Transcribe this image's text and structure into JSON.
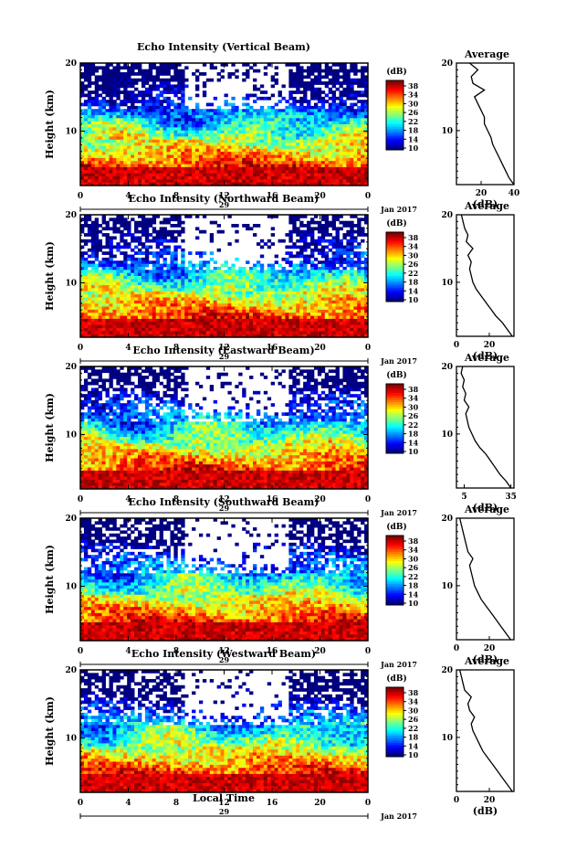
{
  "figure": {
    "date_label": "Jan 2017",
    "x_axis_label": "Local Time"
  },
  "chart_data": [
    {
      "type": "heatmap",
      "title": "Echo Intensity (Vertical Beam)",
      "ylabel": "Height (km)",
      "ylim": [
        2,
        20
      ],
      "yticks": [
        10,
        20
      ],
      "xlim": [
        0,
        24
      ],
      "xticks": [
        "0",
        "4",
        "8",
        "12",
        "16",
        "20",
        "0"
      ],
      "day_label": "29",
      "colorbar": {
        "unit": "(dB)",
        "min": 10,
        "max": 38,
        "ticks": [
          "38",
          "34",
          "30",
          "26",
          "22",
          "18",
          "14",
          "10"
        ]
      },
      "average_profile": {
        "title": "Average",
        "xlabel": "(dB)",
        "xticks": [
          "20",
          "40"
        ],
        "xlim": [
          5,
          40
        ],
        "yticks": [
          10,
          20
        ],
        "height_km": [
          2,
          3,
          4,
          5,
          6,
          7,
          8,
          9,
          10,
          11,
          12,
          13,
          14,
          15,
          16,
          17,
          18,
          19,
          20
        ],
        "db": [
          40,
          37,
          35,
          33,
          31,
          29,
          27,
          26,
          24,
          22,
          22,
          20,
          18,
          16,
          22,
          15,
          14,
          18,
          13
        ]
      }
    },
    {
      "type": "heatmap",
      "title": "Echo Intensity (Northward Beam)",
      "ylabel": "Height (km)",
      "ylim": [
        2,
        20
      ],
      "yticks": [
        10,
        20
      ],
      "xlim": [
        0,
        24
      ],
      "xticks": [
        "0",
        "4",
        "8",
        "12",
        "16",
        "20",
        "0"
      ],
      "day_label": "29",
      "colorbar": {
        "unit": "(dB)",
        "min": 10,
        "max": 38,
        "ticks": [
          "38",
          "34",
          "30",
          "26",
          "22",
          "18",
          "14",
          "10"
        ]
      },
      "average_profile": {
        "title": "Average",
        "xlabel": "(dB)",
        "xticks": [
          "0",
          "20"
        ],
        "xlim": [
          0,
          35
        ],
        "yticks": [
          10,
          20
        ],
        "height_km": [
          2,
          3,
          4,
          5,
          6,
          7,
          8,
          9,
          10,
          11,
          12,
          13,
          14,
          15,
          16,
          17,
          18,
          19,
          20
        ],
        "db": [
          34,
          31,
          28,
          24,
          21,
          18,
          15,
          12,
          10,
          9,
          8,
          9,
          7,
          10,
          6,
          7,
          5,
          4,
          3
        ]
      }
    },
    {
      "type": "heatmap",
      "title": "Echo Intensity (Eastward Beam)",
      "ylabel": "Height (km)",
      "ylim": [
        2,
        20
      ],
      "yticks": [
        10,
        20
      ],
      "xlim": [
        0,
        24
      ],
      "xticks": [
        "0",
        "4",
        "8",
        "12",
        "16",
        "20",
        "0"
      ],
      "day_label": "29",
      "colorbar": {
        "unit": "(dB)",
        "min": 10,
        "max": 38,
        "ticks": [
          "38",
          "34",
          "30",
          "26",
          "22",
          "18",
          "14",
          "10"
        ]
      },
      "average_profile": {
        "title": "Average",
        "xlabel": "(dB)",
        "xticks": [
          "5",
          "35"
        ],
        "xlim": [
          0,
          37
        ],
        "yticks": [
          10,
          20
        ],
        "height_km": [
          2,
          3,
          4,
          5,
          6,
          7,
          8,
          9,
          10,
          11,
          12,
          13,
          14,
          15,
          16,
          17,
          18,
          19,
          20
        ],
        "db": [
          35,
          32,
          28,
          25,
          22,
          19,
          15,
          12,
          10,
          8,
          7,
          6,
          8,
          5,
          6,
          4,
          5,
          3,
          4
        ]
      }
    },
    {
      "type": "heatmap",
      "title": "Echo Intensity (Southward Beam)",
      "ylabel": "Height (km)",
      "ylim": [
        2,
        20
      ],
      "yticks": [
        10,
        20
      ],
      "xlim": [
        0,
        24
      ],
      "xticks": [
        "0",
        "4",
        "8",
        "12",
        "16",
        "20",
        "0"
      ],
      "day_label": "29",
      "colorbar": {
        "unit": "(dB)",
        "min": 10,
        "max": 38,
        "ticks": [
          "38",
          "34",
          "30",
          "26",
          "22",
          "18",
          "14",
          "10"
        ]
      },
      "average_profile": {
        "title": "Average",
        "xlabel": "(dB)",
        "xticks": [
          "0",
          "20"
        ],
        "xlim": [
          0,
          35
        ],
        "yticks": [
          10,
          20
        ],
        "height_km": [
          2,
          3,
          4,
          5,
          6,
          7,
          8,
          9,
          10,
          11,
          12,
          13,
          14,
          15,
          16,
          17,
          18,
          19,
          20
        ],
        "db": [
          33,
          30,
          27,
          24,
          21,
          18,
          15,
          13,
          11,
          10,
          9,
          8,
          10,
          7,
          6,
          5,
          4,
          3,
          2
        ]
      }
    },
    {
      "type": "heatmap",
      "title": "Echo Intensity (Westward Beam)",
      "ylabel": "Height (km)",
      "ylim": [
        2,
        20
      ],
      "yticks": [
        10,
        20
      ],
      "xlim": [
        0,
        24
      ],
      "xticks": [
        "0",
        "4",
        "8",
        "12",
        "16",
        "20",
        "0"
      ],
      "day_label": "29",
      "colorbar": {
        "unit": "(dB)",
        "min": 10,
        "max": 38,
        "ticks": [
          "38",
          "34",
          "30",
          "26",
          "22",
          "18",
          "14",
          "10"
        ]
      },
      "average_profile": {
        "title": "Average",
        "xlabel": "(dB)",
        "xticks": [
          "0",
          "20"
        ],
        "xlim": [
          0,
          35
        ],
        "yticks": [
          10,
          20
        ],
        "height_km": [
          2,
          3,
          4,
          5,
          6,
          7,
          8,
          9,
          10,
          11,
          12,
          13,
          14,
          15,
          16,
          17,
          18,
          19,
          20
        ],
        "db": [
          34,
          31,
          28,
          25,
          22,
          19,
          16,
          14,
          12,
          10,
          9,
          11,
          8,
          7,
          9,
          5,
          4,
          3,
          2
        ]
      }
    }
  ]
}
